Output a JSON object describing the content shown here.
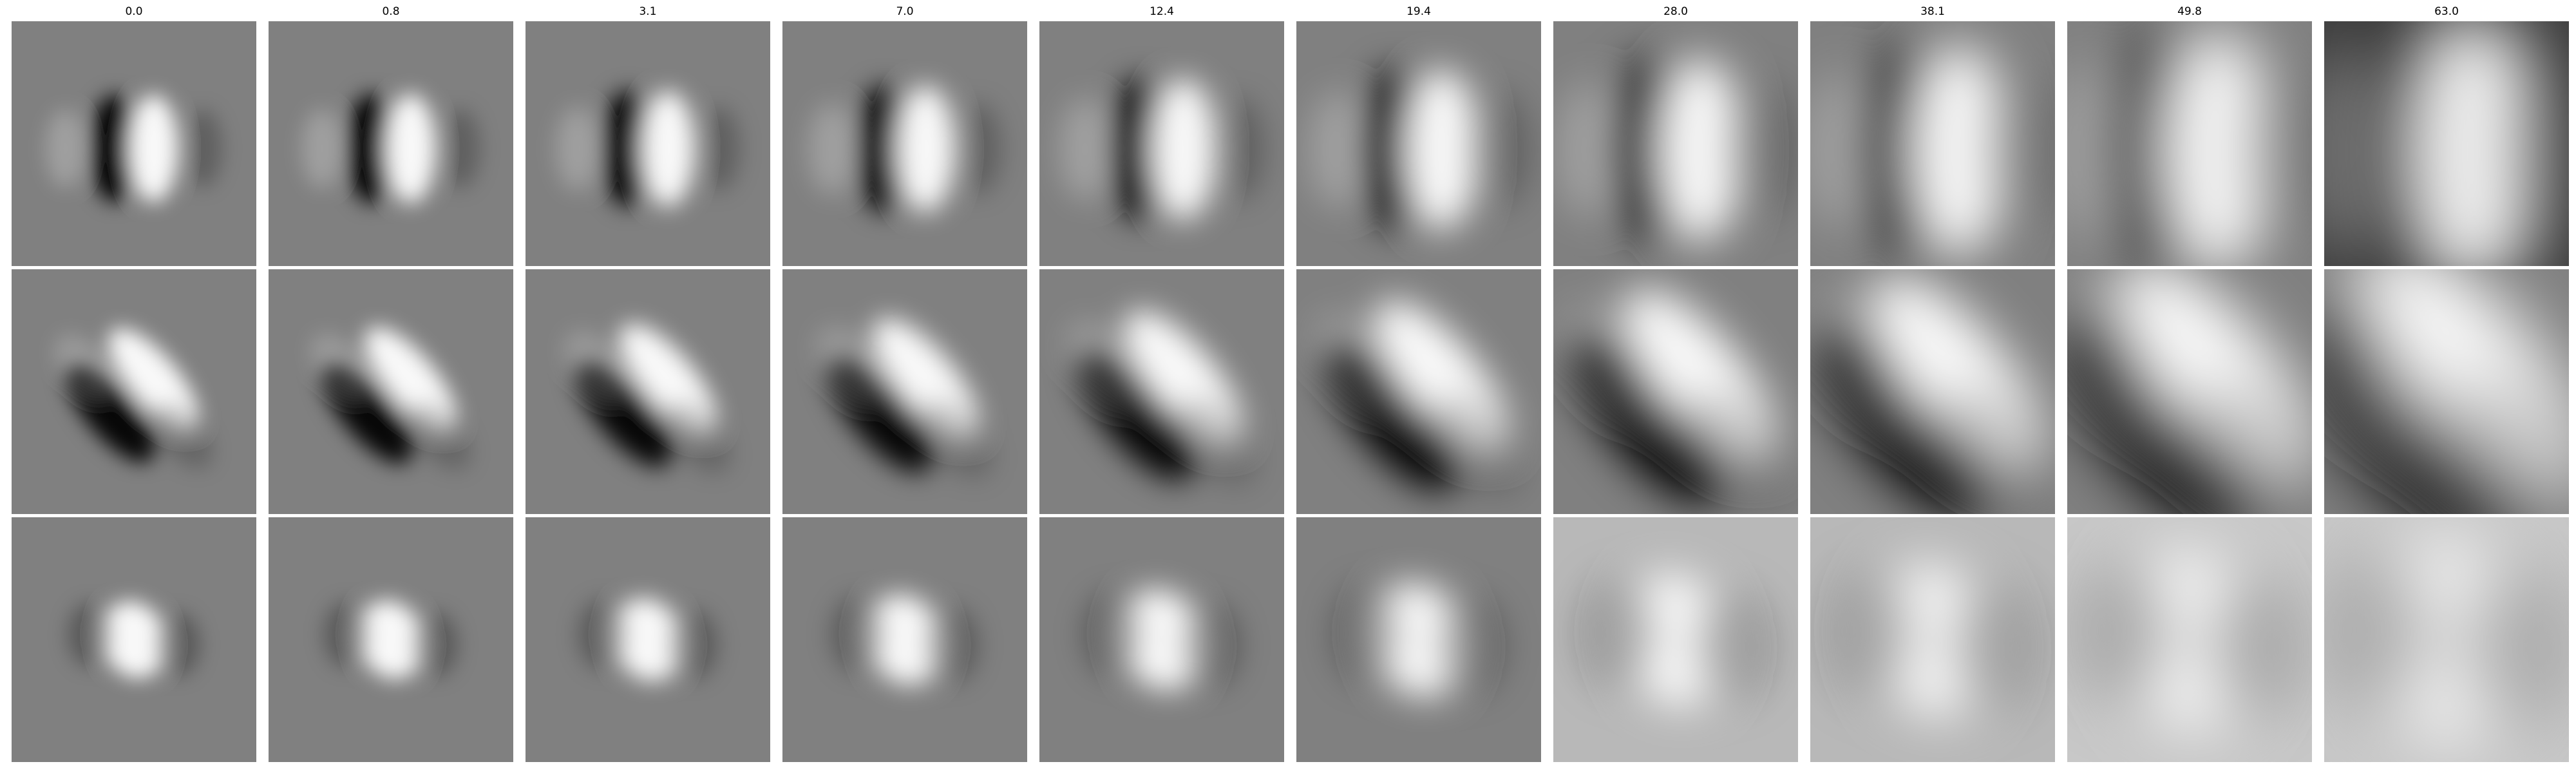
{
  "columns": [
    {
      "label": "0.0",
      "scale": 0.0
    },
    {
      "label": "0.8",
      "scale": 0.8
    },
    {
      "label": "3.1",
      "scale": 3.1
    },
    {
      "label": "7.0",
      "scale": 7.0
    },
    {
      "label": "12.4",
      "scale": 12.4
    },
    {
      "label": "19.4",
      "scale": 19.4
    },
    {
      "label": "28.0",
      "scale": 28.0
    },
    {
      "label": "38.1",
      "scale": 38.1
    },
    {
      "label": "49.8",
      "scale": 49.8
    },
    {
      "label": "63.0",
      "scale": 63.0
    }
  ],
  "rows": [
    {
      "pattern": "vertical-edge-dark-left-light-right"
    },
    {
      "pattern": "diagonal-edge-dark-lower-left-light-upper-right"
    },
    {
      "pattern": "light-center-blob"
    }
  ],
  "colors": {
    "background": "#ffffff",
    "neutral_gray": "#808080",
    "dark": "#000000",
    "light": "#ffffff"
  }
}
